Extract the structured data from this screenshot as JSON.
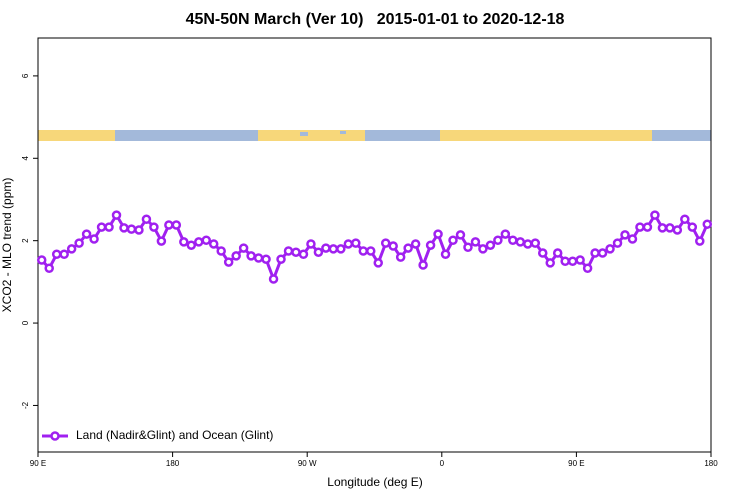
{
  "chart_data": {
    "type": "line",
    "title": "45N-50N March (Ver 10)   2015-01-01 to 2020-12-18",
    "xlabel": "Longitude (deg E)",
    "ylabel": "XCO2 - MLO trend (ppm)",
    "xlim": [
      90,
      540
    ],
    "ylim": [
      -3.13,
      6.92
    ],
    "xticks": [
      {
        "value": 90,
        "label": "90 E"
      },
      180,
      {
        "value": 270,
        "label": "90 W"
      },
      {
        "value": 360,
        "label": "0"
      },
      {
        "value": 450,
        "label": "90 E"
      },
      {
        "value": 540,
        "label": "180"
      }
    ],
    "yticks": [
      -2,
      0,
      2,
      4,
      6
    ],
    "legend": "bottom-left",
    "x": [
      92.5,
      97.5,
      102.5,
      107.5,
      112.5,
      117.5,
      122.5,
      127.5,
      132.5,
      137.5,
      142.5,
      147.5,
      152.5,
      157.5,
      162.5,
      167.5,
      172.5,
      177.5,
      182.5,
      187.5,
      192.5,
      197.5,
      202.5,
      207.5,
      212.5,
      217.5,
      222.5,
      227.5,
      232.5,
      237.5,
      242.5,
      247.5,
      252.5,
      257.5,
      262.5,
      267.5,
      272.5,
      277.5,
      282.5,
      287.5,
      292.5,
      297.5,
      302.5,
      307.5,
      312.5,
      317.5,
      322.5,
      327.5,
      332.5,
      337.5,
      342.5,
      347.5,
      352.5,
      357.5,
      362.5,
      367.5,
      372.5,
      377.5,
      382.5,
      387.5,
      392.5,
      397.5,
      402.5,
      407.5,
      412.5,
      417.5,
      422.5,
      427.5,
      432.5,
      437.5,
      442.5,
      447.5,
      452.5,
      457.5,
      462.5,
      467.5,
      472.5,
      477.5,
      482.5,
      487.5,
      492.5,
      497.5,
      502.5,
      507.5,
      512.5,
      517.5,
      522.5,
      527.5,
      532.5,
      537.5
    ],
    "series": [
      {
        "name": "Land (Nadir&Glint) and Ocean (Glint)",
        "color": "#a020f0",
        "values": [
          1.53,
          1.33,
          1.67,
          1.67,
          1.8,
          1.94,
          2.16,
          2.04,
          2.33,
          2.33,
          2.62,
          2.31,
          2.28,
          2.26,
          2.52,
          2.33,
          1.99,
          2.38,
          2.38,
          1.97,
          1.89,
          1.97,
          2.01,
          1.92,
          1.75,
          1.48,
          1.63,
          1.82,
          1.63,
          1.58,
          1.55,
          1.07,
          1.55,
          1.75,
          1.72,
          1.67,
          1.92,
          1.72,
          1.82,
          1.8,
          1.8,
          1.92,
          1.94,
          1.75,
          1.75,
          1.46,
          1.94,
          1.87,
          1.6,
          1.82,
          1.92,
          1.41,
          1.89,
          2.16,
          1.67,
          2.01,
          2.14,
          1.84,
          1.97,
          1.8,
          1.89,
          2.01,
          2.16,
          2.01,
          1.97,
          1.92,
          1.94,
          1.7,
          1.46,
          1.7,
          1.5,
          1.5,
          1.53,
          1.33,
          1.7,
          1.7,
          1.8,
          1.94,
          2.14,
          2.04,
          2.33,
          2.33,
          2.62,
          2.31,
          2.31,
          2.26,
          2.52,
          2.33,
          1.99,
          2.4
        ]
      }
    ]
  }
}
